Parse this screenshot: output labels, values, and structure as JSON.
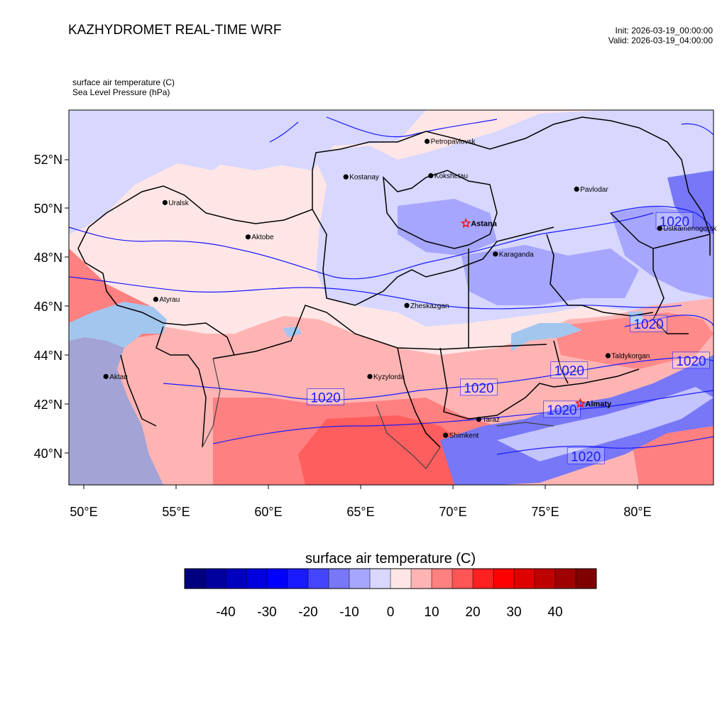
{
  "header": {
    "title": "KAZHYDROMET REAL-TIME WRF",
    "init": "Init: 2026-03-19_00:00:00",
    "valid": "Valid: 2026-03-19_04:00:00"
  },
  "fields": {
    "line1": "surface air temperature   (C)",
    "line2": "Sea Level Pressure   (hPa)"
  },
  "map": {
    "lat_labels": [
      "52°N",
      "50°N",
      "48°N",
      "46°N",
      "44°N",
      "42°N",
      "40°N"
    ],
    "lon_labels": [
      "50°E",
      "55°E",
      "60°E",
      "65°E",
      "70°E",
      "75°E",
      "80°E"
    ],
    "cities": [
      {
        "name": "Petropavlovsk",
        "lon": 68.6,
        "lat": 52.75,
        "type": "dot"
      },
      {
        "name": "Kostanay",
        "lon": 64.2,
        "lat": 51.3,
        "type": "dot"
      },
      {
        "name": "Kokshetau",
        "lon": 68.8,
        "lat": 51.35,
        "type": "dot"
      },
      {
        "name": "Pavlodar",
        "lon": 76.7,
        "lat": 50.8,
        "type": "dot"
      },
      {
        "name": "Uralsk",
        "lon": 54.4,
        "lat": 50.25,
        "type": "dot"
      },
      {
        "name": "Astana",
        "lon": 70.7,
        "lat": 49.4,
        "type": "capital"
      },
      {
        "name": "Ustkamenogorsk",
        "lon": 81.2,
        "lat": 49.2,
        "type": "dot"
      },
      {
        "name": "Aktobe",
        "lon": 58.9,
        "lat": 48.85,
        "type": "dot"
      },
      {
        "name": "Karaganda",
        "lon": 72.3,
        "lat": 48.15,
        "type": "dot"
      },
      {
        "name": "Atyrau",
        "lon": 53.9,
        "lat": 46.3,
        "type": "dot"
      },
      {
        "name": "Zheskazgan",
        "lon": 67.5,
        "lat": 46.05,
        "type": "dot"
      },
      {
        "name": "Taldykorgan",
        "lon": 78.4,
        "lat": 44.0,
        "type": "dot"
      },
      {
        "name": "Kyzylorda",
        "lon": 65.5,
        "lat": 43.15,
        "type": "dot"
      },
      {
        "name": "Aktau",
        "lon": 51.2,
        "lat": 43.15,
        "type": "dot"
      },
      {
        "name": "Almaty",
        "lon": 76.9,
        "lat": 42.05,
        "type": "capital"
      },
      {
        "name": "Taraz",
        "lon": 71.4,
        "lat": 41.4,
        "type": "dot"
      },
      {
        "name": "Shimkent",
        "lon": 69.6,
        "lat": 40.75,
        "type": "dot"
      }
    ],
    "isobar_labels": [
      {
        "text": "1020",
        "lon": 82.0,
        "lat": 49.5
      },
      {
        "text": "1020",
        "lon": 80.6,
        "lat": 45.3
      },
      {
        "text": "1020",
        "lon": 82.9,
        "lat": 43.8
      },
      {
        "text": "1020",
        "lon": 76.3,
        "lat": 43.4
      },
      {
        "text": "1020",
        "lon": 71.4,
        "lat": 42.7
      },
      {
        "text": "1020",
        "lon": 63.1,
        "lat": 42.3
      },
      {
        "text": "1020",
        "lon": 75.9,
        "lat": 41.8
      },
      {
        "text": "1020",
        "lon": 77.2,
        "lat": 39.9
      }
    ],
    "colors": {
      "cold": "#d7d7ff",
      "mid_cold": "#a6a6ff",
      "cool_blue": "#7777f7",
      "neutral": "#ffe6e6",
      "warm_light": "#ffb4b4",
      "warm": "#ff7f7f",
      "warm_strong": "#ff5555",
      "sea": "#a3c6ef",
      "caspian_deep": "#a3a3d6",
      "isobar": "#1a1aff"
    }
  },
  "colorbar": {
    "title": "surface air temperature  (C)",
    "ticks": [
      "-40",
      "-30",
      "-20",
      "-10",
      "0",
      "10",
      "20",
      "30",
      "40"
    ],
    "colors": [
      "#00007f",
      "#00009f",
      "#0000bf",
      "#0000df",
      "#0000ff",
      "#1a1aff",
      "#4545ff",
      "#7777f7",
      "#a6a6ff",
      "#d7d7ff",
      "#ffe6e6",
      "#ffb4b4",
      "#ff8080",
      "#ff5555",
      "#ff2020",
      "#ff0000",
      "#df0000",
      "#bf0000",
      "#9f0000",
      "#7f0000"
    ]
  }
}
